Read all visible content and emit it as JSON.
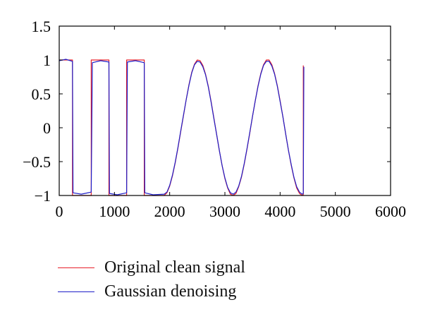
{
  "chart_data": {
    "type": "line",
    "title": "",
    "xlabel": "",
    "ylabel": "",
    "xlim": [
      0,
      6000
    ],
    "ylim": [
      -1,
      1.5
    ],
    "xticks": [
      0,
      1000,
      2000,
      3000,
      4000,
      5000,
      6000
    ],
    "xtick_labels": [
      "0",
      "1000",
      "2000",
      "3000",
      "4000",
      "5000",
      "6000"
    ],
    "yticks": [
      1.5,
      1,
      0.5,
      0,
      -0.5,
      -1
    ],
    "ytick_labels": [
      "1.5",
      "1",
      "0.5",
      "0",
      "−0.5",
      "−1"
    ],
    "grid": false,
    "legend_position": "below",
    "series": [
      {
        "name": "Original clean signal",
        "color": "#e8202a",
        "points": [
          [
            0,
            1
          ],
          [
            240,
            1
          ],
          [
            240,
            -1
          ],
          [
            580,
            -1
          ],
          [
            580,
            1
          ],
          [
            900,
            1
          ],
          [
            900,
            -1
          ],
          [
            1220,
            -1
          ],
          [
            1220,
            1
          ],
          [
            1540,
            1
          ],
          [
            1540,
            -1
          ],
          [
            1900,
            -1
          ],
          [
            1950,
            -0.96
          ],
          [
            2000,
            -0.86
          ],
          [
            2050,
            -0.71
          ],
          [
            2100,
            -0.52
          ],
          [
            2150,
            -0.3
          ],
          [
            2200,
            -0.06
          ],
          [
            2250,
            0.18
          ],
          [
            2300,
            0.42
          ],
          [
            2350,
            0.64
          ],
          [
            2400,
            0.82
          ],
          [
            2450,
            0.94
          ],
          [
            2500,
            1.0
          ],
          [
            2550,
            0.99
          ],
          [
            2600,
            0.92
          ],
          [
            2650,
            0.79
          ],
          [
            2700,
            0.61
          ],
          [
            2750,
            0.39
          ],
          [
            2800,
            0.15
          ],
          [
            2850,
            -0.1
          ],
          [
            2900,
            -0.34
          ],
          [
            2950,
            -0.56
          ],
          [
            3000,
            -0.75
          ],
          [
            3050,
            -0.89
          ],
          [
            3100,
            -0.98
          ],
          [
            3150,
            -1.0
          ],
          [
            3200,
            -0.97
          ],
          [
            3250,
            -0.87
          ],
          [
            3300,
            -0.73
          ],
          [
            3350,
            -0.54
          ],
          [
            3400,
            -0.32
          ],
          [
            3450,
            -0.08
          ],
          [
            3500,
            0.17
          ],
          [
            3550,
            0.4
          ],
          [
            3600,
            0.62
          ],
          [
            3650,
            0.8
          ],
          [
            3700,
            0.93
          ],
          [
            3750,
            1.0
          ],
          [
            3800,
            1.0
          ],
          [
            3850,
            0.93
          ],
          [
            3900,
            0.8
          ],
          [
            3950,
            0.62
          ],
          [
            4000,
            0.4
          ],
          [
            4050,
            0.16
          ],
          [
            4100,
            -0.09
          ],
          [
            4150,
            -0.33
          ],
          [
            4200,
            -0.55
          ],
          [
            4250,
            -0.74
          ],
          [
            4300,
            -0.89
          ],
          [
            4350,
            -0.97
          ],
          [
            4400,
            -1.0
          ],
          [
            4420,
            -0.99
          ],
          [
            4420,
            0.92
          ]
        ]
      },
      {
        "name": "Gaussian denoising",
        "color": "#1f1fc8",
        "points": [
          [
            0,
            0.99
          ],
          [
            120,
            1.01
          ],
          [
            240,
            0.98
          ],
          [
            250,
            -0.96
          ],
          [
            400,
            -0.98
          ],
          [
            580,
            -0.95
          ],
          [
            600,
            0.96
          ],
          [
            750,
            0.99
          ],
          [
            900,
            0.97
          ],
          [
            910,
            -0.97
          ],
          [
            1050,
            -0.99
          ],
          [
            1220,
            -0.96
          ],
          [
            1235,
            0.97
          ],
          [
            1380,
            0.99
          ],
          [
            1540,
            0.96
          ],
          [
            1550,
            -0.96
          ],
          [
            1700,
            -0.99
          ],
          [
            1900,
            -0.98
          ],
          [
            1950,
            -0.95
          ],
          [
            2000,
            -0.85
          ],
          [
            2050,
            -0.7
          ],
          [
            2100,
            -0.51
          ],
          [
            2150,
            -0.29
          ],
          [
            2200,
            -0.05
          ],
          [
            2250,
            0.19
          ],
          [
            2300,
            0.42
          ],
          [
            2350,
            0.63
          ],
          [
            2400,
            0.81
          ],
          [
            2450,
            0.93
          ],
          [
            2500,
            0.98
          ],
          [
            2550,
            0.97
          ],
          [
            2600,
            0.9
          ],
          [
            2650,
            0.78
          ],
          [
            2700,
            0.6
          ],
          [
            2750,
            0.38
          ],
          [
            2800,
            0.14
          ],
          [
            2850,
            -0.1
          ],
          [
            2900,
            -0.34
          ],
          [
            2950,
            -0.56
          ],
          [
            3000,
            -0.74
          ],
          [
            3050,
            -0.88
          ],
          [
            3100,
            -0.96
          ],
          [
            3150,
            -0.98
          ],
          [
            3200,
            -0.95
          ],
          [
            3250,
            -0.86
          ],
          [
            3300,
            -0.72
          ],
          [
            3350,
            -0.53
          ],
          [
            3400,
            -0.31
          ],
          [
            3450,
            -0.07
          ],
          [
            3500,
            0.17
          ],
          [
            3550,
            0.4
          ],
          [
            3600,
            0.61
          ],
          [
            3650,
            0.79
          ],
          [
            3700,
            0.92
          ],
          [
            3750,
            0.98
          ],
          [
            3800,
            0.98
          ],
          [
            3850,
            0.91
          ],
          [
            3900,
            0.79
          ],
          [
            3950,
            0.61
          ],
          [
            4000,
            0.39
          ],
          [
            4050,
            0.16
          ],
          [
            4100,
            -0.09
          ],
          [
            4150,
            -0.33
          ],
          [
            4200,
            -0.54
          ],
          [
            4250,
            -0.73
          ],
          [
            4300,
            -0.87
          ],
          [
            4350,
            -0.95
          ],
          [
            4400,
            -0.98
          ],
          [
            4420,
            -0.97
          ],
          [
            4430,
            0.9
          ]
        ]
      }
    ]
  },
  "legend": {
    "items": [
      {
        "label": "Original clean signal",
        "color": "#e8202a"
      },
      {
        "label": "Gaussian denoising",
        "color": "#1f1fc8"
      }
    ]
  }
}
